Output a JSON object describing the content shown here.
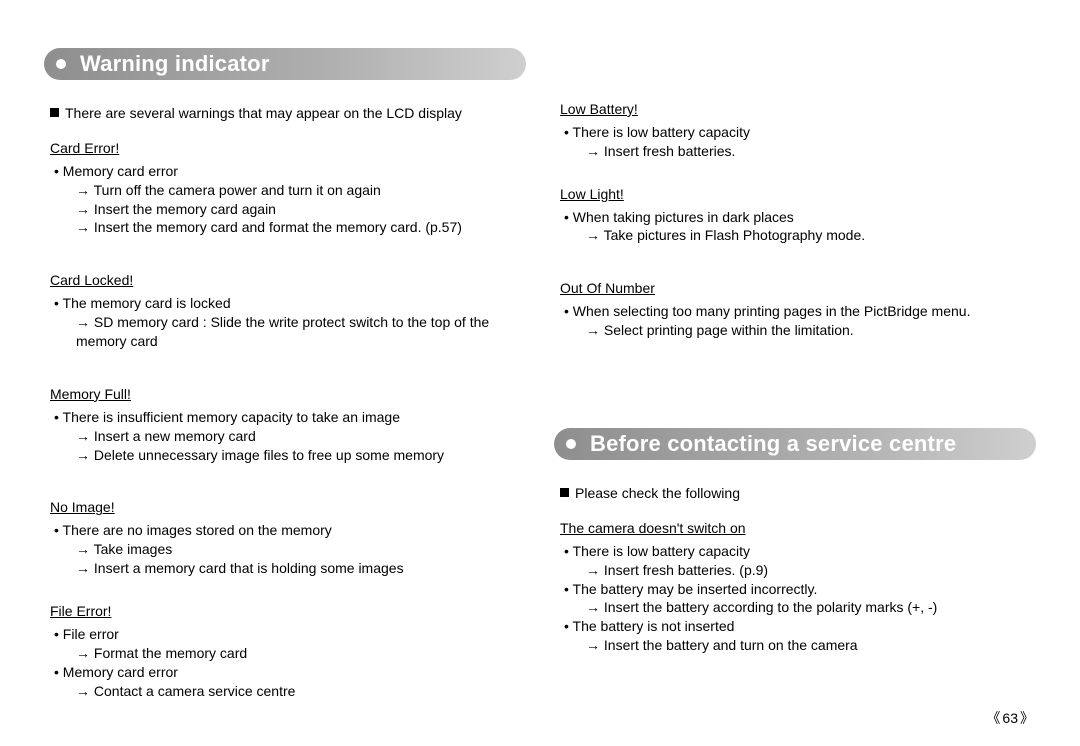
{
  "page_number": "63",
  "heading1": "Warning indicator",
  "heading2": "Before contacting a service centre",
  "intro1": "There are several warnings that may appear on the LCD display",
  "intro2": "Please check the following",
  "warnings": {
    "card_error": {
      "title": "Card Error!",
      "cause": "Memory card error",
      "fix1": "Turn off the camera power and turn it on again",
      "fix2": "Insert the memory card again",
      "fix3": "Insert the memory card and format the memory card. (p.57)"
    },
    "card_locked": {
      "title": "Card Locked!",
      "cause": "The memory card is locked",
      "fix1": "SD memory card : Slide the write protect switch to the top of the memory card"
    },
    "memory_full": {
      "title": "Memory Full!",
      "cause": "There is insufficient memory capacity to take an image",
      "fix1": "Insert a new memory card",
      "fix2": "Delete unnecessary image files to free up some memory"
    },
    "no_image": {
      "title": "No Image!",
      "cause": "There are no images stored on the memory",
      "fix1": "Take images",
      "fix2": "Insert a memory card that is holding some images"
    },
    "file_error": {
      "title": "File Error!",
      "cause1": "File error",
      "fix1": "Format the memory card",
      "cause2": "Memory card error",
      "fix2": "Contact a camera service centre"
    },
    "low_battery": {
      "title": "Low Battery!",
      "cause": "There is low battery capacity",
      "fix1": "Insert fresh batteries."
    },
    "low_light": {
      "title": "Low Light!",
      "cause": "When taking pictures in dark places",
      "fix1": "Take pictures in Flash Photography mode."
    },
    "out_of_number": {
      "title": "Out Of Number",
      "cause": "When selecting too many printing pages in the PictBridge menu.",
      "fix1": "Select printing page within the limitation."
    }
  },
  "troubleshoot": {
    "no_power": {
      "title": "The camera doesn't switch on",
      "c1": "There is low battery capacity",
      "f1": "Insert fresh batteries. (p.9)",
      "c2": "The battery may be inserted incorrectly.",
      "f2": "Insert the battery according to the polarity marks (+, -)",
      "c3": "The battery is not inserted",
      "f3": "Insert the battery and turn on the camera"
    }
  }
}
